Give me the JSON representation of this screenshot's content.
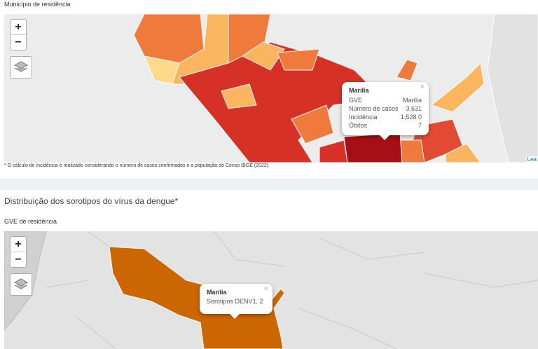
{
  "section1": {
    "label": "Município de residência",
    "zoom_in": "+",
    "zoom_out": "−",
    "popup": {
      "close": "×",
      "title": "Marília",
      "rows": [
        [
          "GVE",
          "Marília"
        ],
        [
          "Número de casos",
          "3,631"
        ],
        [
          "Incidência",
          "1,528.0"
        ],
        [
          "Óbitos",
          "7"
        ]
      ]
    },
    "attribution": "Lea",
    "footnote": "* O cálculo de incidência é realizado considerando o número de casos confirmados e a população do Censo IBGE (2022)."
  },
  "section2": {
    "title": "Distribuição dos sorotipos do vírus da dengue*",
    "label": "GVE de residência",
    "zoom_in": "+",
    "zoom_out": "−",
    "popup": {
      "close": "×",
      "title": "Marília",
      "text": "Sorotipos DENV1, 2"
    }
  }
}
